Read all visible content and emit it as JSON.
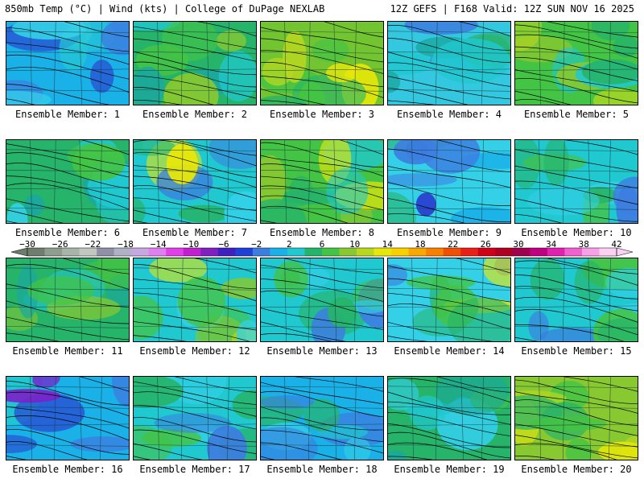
{
  "header": {
    "left": "850mb Temp (°C) | Wind (kts) | College of DuPage NEXLAB",
    "right": "12Z GEFS | F168 Valid: 12Z SUN NOV 16 2025"
  },
  "panels": [
    {
      "label": "Ensemble Member: 1",
      "theme": [
        "#1ab0e8",
        "#34d0e8",
        "#3c7ee0",
        "#2a3ed0",
        "#26c8d4"
      ]
    },
    {
      "label": "Ensemble Member: 2",
      "theme": [
        "#26b46a",
        "#44c444",
        "#1aa8a0",
        "#88c830",
        "#20c8d0"
      ]
    },
    {
      "label": "Ensemble Member: 3",
      "theme": [
        "#72c430",
        "#44c444",
        "#b8d820",
        "#e8e808",
        "#26b46a"
      ]
    },
    {
      "label": "Ensemble Member: 4",
      "theme": [
        "#34c8e0",
        "#20c8d0",
        "#3c7ee0",
        "#26b46a",
        "#1aa8a0"
      ]
    },
    {
      "label": "Ensemble Member: 5",
      "theme": [
        "#44c444",
        "#26b46a",
        "#88c830",
        "#b8d820",
        "#20c8d0"
      ]
    },
    {
      "label": "Ensemble Member: 6",
      "theme": [
        "#26b46a",
        "#20c8d0",
        "#44c444",
        "#1aa8a0",
        "#34d0e8"
      ]
    },
    {
      "label": "Ensemble Member: 7",
      "theme": [
        "#20c8d0",
        "#26b46a",
        "#34d0e8",
        "#3c7ee0",
        "#e8e808"
      ]
    },
    {
      "label": "Ensemble Member: 8",
      "theme": [
        "#44c444",
        "#26b46a",
        "#88c830",
        "#e8e808",
        "#20c8d0"
      ]
    },
    {
      "label": "Ensemble Member: 9",
      "theme": [
        "#34d0e8",
        "#3c7ee0",
        "#2a3ed0",
        "#1ab0e8",
        "#26b46a"
      ]
    },
    {
      "label": "Ensemble Member: 10",
      "theme": [
        "#20c8d0",
        "#26b46a",
        "#34d0e8",
        "#3c7ee0",
        "#44c444"
      ]
    },
    {
      "label": "Ensemble Member: 11",
      "theme": [
        "#26b46a",
        "#44c444",
        "#20c8d0",
        "#1aa8a0",
        "#88c830"
      ]
    },
    {
      "label": "Ensemble Member: 12",
      "theme": [
        "#20c8d0",
        "#44c444",
        "#88c830",
        "#e8e808",
        "#34d0e8"
      ]
    },
    {
      "label": "Ensemble Member: 13",
      "theme": [
        "#20c8d0",
        "#26b46a",
        "#34d0e8",
        "#3c7ee0",
        "#44c444"
      ]
    },
    {
      "label": "Ensemble Member: 14",
      "theme": [
        "#34d0e8",
        "#26b46a",
        "#3c7ee0",
        "#e8e808",
        "#44c444"
      ]
    },
    {
      "label": "Ensemble Member: 15",
      "theme": [
        "#20c8d0",
        "#26b46a",
        "#3c7ee0",
        "#34d0e8",
        "#44c444"
      ]
    },
    {
      "label": "Ensemble Member: 16",
      "theme": [
        "#1ab0e8",
        "#3c7ee0",
        "#2a3ed0",
        "#20c8d0",
        "#7a22c8"
      ]
    },
    {
      "label": "Ensemble Member: 17",
      "theme": [
        "#20c8d0",
        "#26b46a",
        "#34d0e8",
        "#44c444",
        "#3c7ee0"
      ]
    },
    {
      "label": "Ensemble Member: 18",
      "theme": [
        "#1ab0e8",
        "#3c7ee0",
        "#20c8d0",
        "#26b46a",
        "#34d0e8"
      ]
    },
    {
      "label": "Ensemble Member: 19",
      "theme": [
        "#26b46a",
        "#20c8d0",
        "#44c444",
        "#1aa8a0",
        "#34d0e8"
      ]
    },
    {
      "label": "Ensemble Member: 20",
      "theme": [
        "#88c830",
        "#44c444",
        "#b8d820",
        "#e8e808",
        "#26b46a"
      ]
    }
  ],
  "colorbar": {
    "ticks": [
      "-30",
      "-26",
      "-22",
      "-18",
      "-14",
      "-10",
      "-6",
      "-2",
      "2",
      "6",
      "10",
      "14",
      "18",
      "22",
      "26",
      "30",
      "34",
      "38",
      "42"
    ],
    "colors": [
      "#6e7e6e",
      "#8e9e8e",
      "#a8b4a8",
      "#c0c8c0",
      "#9090a8",
      "#b0b0c8",
      "#c8a8e0",
      "#e080f0",
      "#e040e8",
      "#c020d0",
      "#8020c0",
      "#4020c0",
      "#2040d8",
      "#3c7ee0",
      "#1ab0e8",
      "#20c8d0",
      "#26b46a",
      "#44c444",
      "#88c830",
      "#b8d820",
      "#e8e808",
      "#f8d000",
      "#f8a800",
      "#f88000",
      "#f05000",
      "#e82018",
      "#d00018",
      "#b00020",
      "#a00050",
      "#c00080",
      "#e020b0",
      "#f060d0",
      "#f8a0e8",
      "#fbd0f2"
    ]
  }
}
